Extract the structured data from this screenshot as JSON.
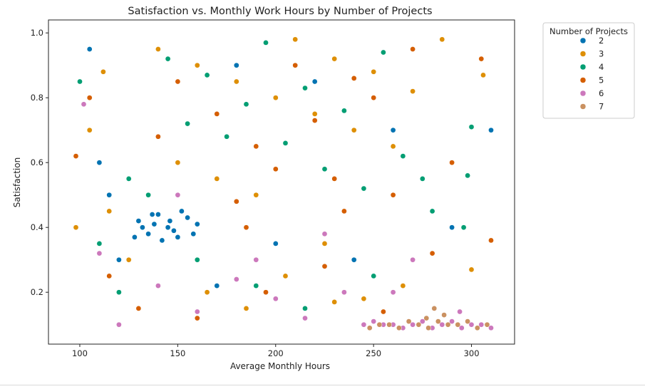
{
  "chart_data": {
    "type": "scatter",
    "title": "Satisfaction vs. Monthly Work Hours by Number of Projects",
    "xlabel": "Average Monthly Hours",
    "ylabel": "Satisfaction",
    "xlim": [
      84,
      322
    ],
    "ylim": [
      0.04,
      1.04
    ],
    "xticks": [
      100,
      150,
      200,
      250,
      300
    ],
    "yticks": [
      0.2,
      0.4,
      0.6,
      0.8,
      1.0
    ],
    "grid": false,
    "legend": {
      "title": "Number of Projects",
      "placement": "outside-top-right",
      "entries": [
        {
          "label": "2",
          "color": "#0173b2"
        },
        {
          "label": "3",
          "color": "#de8f05"
        },
        {
          "label": "4",
          "color": "#029e73"
        },
        {
          "label": "5",
          "color": "#d55e00"
        },
        {
          "label": "6",
          "color": "#cc78bc"
        },
        {
          "label": "7",
          "color": "#ca9161"
        }
      ]
    },
    "series": [
      {
        "name": "2",
        "color": "#0173b2",
        "points": [
          [
            130,
            0.42
          ],
          [
            135,
            0.38
          ],
          [
            140,
            0.44
          ],
          [
            145,
            0.4
          ],
          [
            150,
            0.37
          ],
          [
            155,
            0.43
          ],
          [
            138,
            0.41
          ],
          [
            148,
            0.39
          ],
          [
            142,
            0.36
          ],
          [
            152,
            0.45
          ],
          [
            132,
            0.4
          ],
          [
            158,
            0.38
          ],
          [
            137,
            0.44
          ],
          [
            146,
            0.42
          ],
          [
            128,
            0.37
          ],
          [
            160,
            0.41
          ],
          [
            110,
            0.6
          ],
          [
            120,
            0.3
          ],
          [
            310,
            0.7
          ],
          [
            180,
            0.9
          ],
          [
            220,
            0.85
          ],
          [
            260,
            0.7
          ],
          [
            200,
            0.35
          ],
          [
            170,
            0.22
          ],
          [
            240,
            0.3
          ],
          [
            105,
            0.95
          ],
          [
            115,
            0.5
          ],
          [
            290,
            0.4
          ]
        ]
      },
      {
        "name": "3",
        "color": "#de8f05",
        "points": [
          [
            140,
            0.95
          ],
          [
            160,
            0.9
          ],
          [
            180,
            0.85
          ],
          [
            200,
            0.8
          ],
          [
            220,
            0.75
          ],
          [
            240,
            0.7
          ],
          [
            260,
            0.65
          ],
          [
            150,
            0.6
          ],
          [
            170,
            0.55
          ],
          [
            190,
            0.5
          ],
          [
            210,
            0.98
          ],
          [
            230,
            0.92
          ],
          [
            250,
            0.88
          ],
          [
            270,
            0.82
          ],
          [
            105,
            0.7
          ],
          [
            115,
            0.45
          ],
          [
            125,
            0.3
          ],
          [
            165,
            0.2
          ],
          [
            185,
            0.15
          ],
          [
            205,
            0.25
          ],
          [
            225,
            0.35
          ],
          [
            245,
            0.18
          ],
          [
            265,
            0.22
          ],
          [
            285,
            0.98
          ],
          [
            300,
            0.27
          ],
          [
            306,
            0.87
          ],
          [
            230,
            0.17
          ],
          [
            98,
            0.4
          ],
          [
            112,
            0.88
          ]
        ]
      },
      {
        "name": "4",
        "color": "#029e73",
        "points": [
          [
            145,
            0.92
          ],
          [
            165,
            0.87
          ],
          [
            185,
            0.78
          ],
          [
            205,
            0.66
          ],
          [
            225,
            0.58
          ],
          [
            245,
            0.52
          ],
          [
            265,
            0.62
          ],
          [
            155,
            0.72
          ],
          [
            175,
            0.68
          ],
          [
            195,
            0.97
          ],
          [
            215,
            0.83
          ],
          [
            235,
            0.76
          ],
          [
            255,
            0.94
          ],
          [
            275,
            0.55
          ],
          [
            135,
            0.5
          ],
          [
            110,
            0.35
          ],
          [
            125,
            0.55
          ],
          [
            160,
            0.3
          ],
          [
            190,
            0.22
          ],
          [
            215,
            0.15
          ],
          [
            250,
            0.25
          ],
          [
            280,
            0.45
          ],
          [
            300,
            0.71
          ],
          [
            296,
            0.4
          ],
          [
            100,
            0.85
          ],
          [
            120,
            0.2
          ],
          [
            298,
            0.56
          ]
        ]
      },
      {
        "name": "5",
        "color": "#d55e00",
        "points": [
          [
            150,
            0.85
          ],
          [
            170,
            0.75
          ],
          [
            190,
            0.65
          ],
          [
            210,
            0.9
          ],
          [
            230,
            0.55
          ],
          [
            250,
            0.8
          ],
          [
            270,
            0.95
          ],
          [
            140,
            0.68
          ],
          [
            180,
            0.48
          ],
          [
            200,
            0.58
          ],
          [
            220,
            0.73
          ],
          [
            240,
            0.86
          ],
          [
            260,
            0.5
          ],
          [
            105,
            0.8
          ],
          [
            115,
            0.25
          ],
          [
            130,
            0.15
          ],
          [
            160,
            0.12
          ],
          [
            195,
            0.2
          ],
          [
            225,
            0.28
          ],
          [
            255,
            0.14
          ],
          [
            280,
            0.32
          ],
          [
            290,
            0.6
          ],
          [
            305,
            0.92
          ],
          [
            310,
            0.36
          ],
          [
            98,
            0.62
          ],
          [
            185,
            0.4
          ],
          [
            235,
            0.45
          ]
        ]
      },
      {
        "name": "6",
        "color": "#cc78bc",
        "points": [
          [
            245,
            0.1
          ],
          [
            255,
            0.1
          ],
          [
            265,
            0.09
          ],
          [
            275,
            0.11
          ],
          [
            285,
            0.1
          ],
          [
            295,
            0.09
          ],
          [
            305,
            0.1
          ],
          [
            250,
            0.11
          ],
          [
            260,
            0.1
          ],
          [
            270,
            0.1
          ],
          [
            280,
            0.09
          ],
          [
            290,
            0.11
          ],
          [
            300,
            0.1
          ],
          [
            310,
            0.09
          ],
          [
            200,
            0.18
          ],
          [
            215,
            0.12
          ],
          [
            235,
            0.2
          ],
          [
            180,
            0.24
          ],
          [
            160,
            0.14
          ],
          [
            140,
            0.22
          ],
          [
            120,
            0.1
          ],
          [
            102,
            0.78
          ],
          [
            110,
            0.32
          ],
          [
            225,
            0.38
          ],
          [
            270,
            0.3
          ],
          [
            150,
            0.5
          ],
          [
            190,
            0.3
          ],
          [
            260,
            0.2
          ],
          [
            294,
            0.14
          ]
        ]
      },
      {
        "name": "7",
        "color": "#ca9161",
        "points": [
          [
            248,
            0.09
          ],
          [
            258,
            0.1
          ],
          [
            268,
            0.11
          ],
          [
            278,
            0.09
          ],
          [
            288,
            0.1
          ],
          [
            298,
            0.11
          ],
          [
            308,
            0.1
          ],
          [
            253,
            0.1
          ],
          [
            263,
            0.09
          ],
          [
            273,
            0.1
          ],
          [
            283,
            0.11
          ],
          [
            293,
            0.1
          ],
          [
            303,
            0.09
          ],
          [
            286,
            0.13
          ],
          [
            281,
            0.15
          ],
          [
            277,
            0.12
          ]
        ]
      }
    ]
  }
}
